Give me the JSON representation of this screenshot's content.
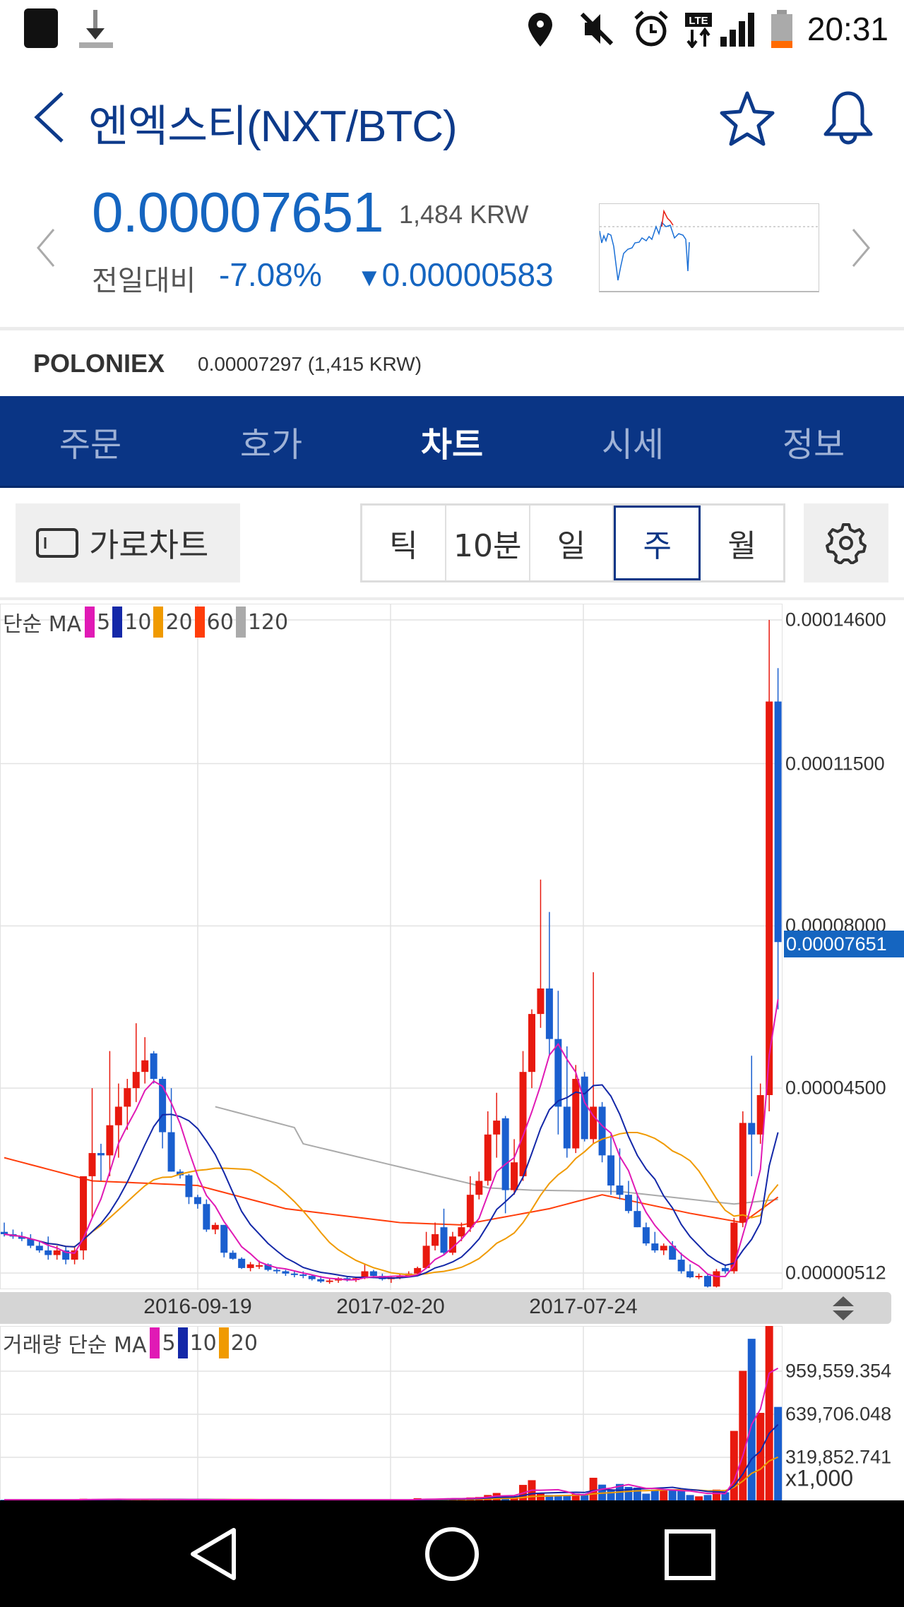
{
  "status_bar": {
    "time": "20:31",
    "icons": [
      "app-icon",
      "download-icon",
      "location-icon",
      "mute-icon",
      "alarm-icon",
      "lte-icon",
      "signal-icon",
      "battery-icon"
    ]
  },
  "header": {
    "title": "엔엑스티(NXT/BTC)",
    "icons": [
      "back-icon",
      "star-icon",
      "bell-icon"
    ]
  },
  "price": {
    "value": "0.00007651",
    "krw": "1,484 KRW",
    "compare_label": "전일대비",
    "change_pct": "-7.08%",
    "change_arrow": "▼",
    "change_value": "0.00000583"
  },
  "exchange": {
    "name": "POLONIEX",
    "price": "0.00007297 (1,415 KRW)"
  },
  "tabs": [
    {
      "label": "주문"
    },
    {
      "label": "호가"
    },
    {
      "label": "차트",
      "active": true
    },
    {
      "label": "시세"
    },
    {
      "label": "정보"
    }
  ],
  "controls": {
    "landscape_label": "가로차트",
    "periods": [
      {
        "label": "틱"
      },
      {
        "label": "10분"
      },
      {
        "label": "일"
      },
      {
        "label": "주",
        "selected": true
      },
      {
        "label": "월"
      }
    ]
  },
  "colors": {
    "up": "#e8190e",
    "down": "#1a5fcf",
    "accent": "#0a3585",
    "price_blue": "#1565c0"
  },
  "chart_data": [
    {
      "type": "candlestick",
      "legend": {
        "label": "단순 MA",
        "items": [
          {
            "name": "5",
            "color": "#e01ab5"
          },
          {
            "name": "10",
            "color": "#1428a8"
          },
          {
            "name": "20",
            "color": "#f09a00"
          },
          {
            "name": "60",
            "color": "#ff3d0a"
          },
          {
            "name": "120",
            "color": "#aaaaaa"
          }
        ]
      },
      "y_ticks": [
        "0.00014600",
        "0.00011500",
        "0.00008000",
        "0.00004500",
        "0.00000512"
      ],
      "ylim": [
        5.12e-06,
        0.000146
      ],
      "current_price_label": "0.00007651",
      "x_ticks": [
        "2016-09-19",
        "2017-02-20",
        "2017-07-24"
      ],
      "x_interval": "weekly",
      "candles_ohlc": [
        [
          1.4e-05,
          1.6e-05,
          1.3e-05,
          1.35e-05
        ],
        [
          1.35e-05,
          1.45e-05,
          1.25e-05,
          1.3e-05
        ],
        [
          1.3e-05,
          1.4e-05,
          1.2e-05,
          1.25e-05
        ],
        [
          1.25e-05,
          1.35e-05,
          1.05e-05,
          1.1e-05
        ],
        [
          1.1e-05,
          1.2e-05,
          9.5e-06,
          1e-05
        ],
        [
          1e-05,
          1.3e-05,
          8e-06,
          9e-06
        ],
        [
          9e-06,
          1.1e-05,
          8e-06,
          1e-05
        ],
        [
          1e-05,
          1.1e-05,
          7e-06,
          8e-06
        ],
        [
          8e-06,
          1.1e-05,
          7e-06,
          1e-05
        ],
        [
          1e-05,
          1.3e-05,
          8e-06,
          2.6e-05
        ],
        [
          2.6e-05,
          4.5e-05,
          1.7e-05,
          3.1e-05
        ],
        [
          3.1e-05,
          3.3e-05,
          2.5e-05,
          3.05e-05
        ],
        [
          3.05e-05,
          5.3e-05,
          2.6e-05,
          3.7e-05
        ],
        [
          3.7e-05,
          4.6e-05,
          3e-05,
          4.1e-05
        ],
        [
          4.1e-05,
          4.7e-05,
          3.6e-05,
          4.5e-05
        ],
        [
          4.5e-05,
          5.9e-05,
          4.2e-05,
          4.85e-05
        ],
        [
          4.85e-05,
          5.6e-05,
          4.6e-05,
          5.1e-05
        ],
        [
          5.25e-05,
          5.3e-05,
          4.6e-05,
          4.7e-05
        ],
        [
          4.7e-05,
          4.75e-05,
          3.2e-05,
          3.55e-05
        ],
        [
          3.55e-05,
          4.5e-05,
          2.7e-05,
          2.7e-05
        ],
        [
          2.7e-05,
          2.75e-05,
          2.55e-05,
          2.62e-05
        ],
        [
          2.62e-05,
          2.65e-05,
          2e-05,
          2.15e-05
        ],
        [
          2.15e-05,
          2.2e-05,
          1.9e-05,
          2e-05
        ],
        [
          2e-05,
          2.1e-05,
          1.4e-05,
          1.45e-05
        ],
        [
          1.45e-05,
          1.6e-05,
          1.35e-05,
          1.55e-05
        ],
        [
          1.55e-05,
          1.55e-05,
          8.5e-06,
          9.5e-06
        ],
        [
          9.5e-06,
          1e-05,
          8e-06,
          8.2e-06
        ],
        [
          8.2e-06,
          8.5e-06,
          6e-06,
          6.2e-06
        ],
        [
          6.2e-06,
          7.5e-06,
          5.5e-06,
          7e-06
        ],
        [
          6.6e-06,
          7.8e-06,
          6e-06,
          6.8e-06
        ],
        [
          7e-06,
          7.2e-06,
          5.5e-06,
          5.8e-06
        ],
        [
          5.8e-06,
          6.2e-06,
          5e-06,
          5.5e-06
        ],
        [
          5.5e-06,
          5.8e-06,
          4.5e-06,
          5e-06
        ],
        [
          5e-06,
          5.5e-06,
          4.2e-06,
          4.8e-06
        ],
        [
          4.8e-06,
          5.5e-06,
          4e-06,
          4.5e-06
        ],
        [
          4.5e-06,
          4.8e-06,
          3.5e-06,
          3.8e-06
        ],
        [
          3.8e-06,
          4.5e-06,
          3e-06,
          3.3e-06
        ],
        [
          3.3e-06,
          4e-06,
          2.8e-06,
          3.5e-06
        ],
        [
          3.5e-06,
          4.2e-06,
          3e-06,
          4e-06
        ],
        [
          4e-06,
          4.5e-06,
          3.3e-06,
          3.6e-06
        ],
        [
          3.6e-06,
          4.2e-06,
          3.2e-06,
          4e-06
        ],
        [
          4e-06,
          7e-06,
          3.8e-06,
          5.5e-06
        ],
        [
          5.5e-06,
          5.8e-06,
          4e-06,
          4.5e-06
        ],
        [
          4.5e-06,
          5e-06,
          3.5e-06,
          3.8e-06
        ],
        [
          3.8e-06,
          4.5e-06,
          3e-06,
          4.2e-06
        ],
        [
          4.2e-06,
          5e-06,
          3.8e-06,
          4.5e-06
        ],
        [
          4.5e-06,
          5.5e-06,
          4.2e-06,
          5e-06
        ],
        [
          5e-06,
          6.5e-06,
          4.5e-06,
          6.2e-06
        ],
        [
          6.2e-06,
          1.4e-05,
          6e-06,
          1.1e-05
        ],
        [
          1.1e-05,
          1.6e-05,
          1e-05,
          1.35e-05
        ],
        [
          1.5e-05,
          1.9e-05,
          9e-06,
          9.5e-06
        ],
        [
          9.5e-06,
          1.4e-05,
          9e-06,
          1.3e-05
        ],
        [
          1.3e-05,
          1.6e-05,
          1.2e-05,
          1.5e-05
        ],
        [
          1.5e-05,
          2.6e-05,
          1.4e-05,
          2.2e-05
        ],
        [
          2.2e-05,
          2.7e-05,
          2.1e-05,
          2.5e-05
        ],
        [
          2.5e-05,
          4e-05,
          2.4e-05,
          3.5e-05
        ],
        [
          3.5e-05,
          4.4e-05,
          3e-05,
          3.8e-05
        ],
        [
          3.85e-05,
          3.9e-05,
          1.8e-05,
          2.3e-05
        ],
        [
          2.3e-05,
          3.4e-05,
          2.2e-05,
          2.9e-05
        ],
        [
          2.6e-05,
          5.3e-05,
          2.5e-05,
          4.85e-05
        ],
        [
          4.85e-05,
          6.2e-05,
          4.5e-05,
          6.1e-05
        ],
        [
          6.1e-05,
          9e-05,
          5.8e-05,
          6.65e-05
        ],
        [
          6.65e-05,
          8.3e-05,
          5.2e-05,
          5.56e-05
        ],
        [
          5.56e-05,
          6.6e-05,
          3.5e-05,
          4.1e-05
        ],
        [
          4.1e-05,
          5.4e-05,
          3e-05,
          3.2e-05
        ],
        [
          3.2e-05,
          5e-05,
          3.1e-05,
          4.7e-05
        ],
        [
          4.75e-05,
          4.85e-05,
          3.35e-05,
          3.4e-05
        ],
        [
          3.4e-05,
          7e-05,
          3.3e-05,
          4.1e-05
        ],
        [
          4.1e-05,
          4.2e-05,
          2.9e-05,
          3.05e-05
        ],
        [
          3.05e-05,
          3.5e-05,
          2.2e-05,
          2.4e-05
        ],
        [
          2.4e-05,
          3.2e-05,
          2.1e-05,
          2.2e-05
        ],
        [
          2.2e-05,
          2.5e-05,
          1.8e-05,
          1.85e-05
        ],
        [
          1.85e-05,
          2.2e-05,
          1.5e-05,
          1.5e-05
        ],
        [
          1.5e-05,
          1.6e-05,
          1.1e-05,
          1.15e-05
        ],
        [
          1.15e-05,
          1.4e-05,
          9.5e-06,
          1e-05
        ],
        [
          1e-05,
          1.15e-05,
          9e-06,
          1.1e-05
        ],
        [
          1.1e-05,
          1.2e-05,
          8e-06,
          8e-06
        ],
        [
          8e-06,
          9.5e-06,
          5e-06,
          5.5e-06
        ],
        [
          5.5e-06,
          7e-06,
          4e-06,
          4.2e-06
        ],
        [
          4.2e-06,
          5e-06,
          3.8e-06,
          4.5e-06
        ],
        [
          4.5e-06,
          5e-06,
          2e-06,
          2.2e-06
        ],
        [
          2.2e-06,
          6e-06,
          2e-06,
          5.5e-06
        ],
        [
          6.2e-06,
          7e-06,
          5e-06,
          5.5e-06
        ],
        [
          5.5e-06,
          1.7e-05,
          5e-06,
          1.6e-05
        ],
        [
          1.6e-05,
          4e-05,
          1.5e-05,
          3.75e-05
        ],
        [
          3.75e-05,
          5.2e-05,
          2.6e-05,
          3.5e-05
        ],
        [
          3.5e-05,
          4.6e-05,
          3.3e-05,
          4.35e-05
        ],
        [
          4.35e-05,
          0.000146,
          4e-05,
          0.0001284
        ],
        [
          0.0001284,
          0.0001356,
          6.2e-05,
          7.651e-05
        ]
      ],
      "ma60_keypoints": [
        [
          0,
          3e-05
        ],
        [
          10,
          2.5e-05
        ],
        [
          22,
          2.4e-05
        ],
        [
          32,
          1.9e-05
        ],
        [
          45,
          1.6e-05
        ],
        [
          52,
          1.55e-05
        ],
        [
          62,
          1.9e-05
        ],
        [
          68,
          2.2e-05
        ],
        [
          78,
          1.8e-05
        ],
        [
          84,
          1.6e-05
        ],
        [
          88,
          2.15e-05
        ]
      ],
      "ma120_keypoints": [
        [
          24,
          4.1e-05
        ],
        [
          25,
          4.05e-05
        ],
        [
          33,
          3.65e-05
        ],
        [
          34,
          3.3e-05
        ],
        [
          45,
          2.8e-05
        ],
        [
          55,
          2.35e-05
        ],
        [
          60,
          2.3e-05
        ],
        [
          70,
          2.27e-05
        ],
        [
          83,
          2e-05
        ],
        [
          88,
          2.1e-05
        ]
      ]
    },
    {
      "type": "bar",
      "legend": {
        "label": "거래량 단순 MA",
        "items": [
          {
            "name": "5",
            "color": "#e01ab5"
          },
          {
            "name": "10",
            "color": "#1428a8"
          },
          {
            "name": "20",
            "color": "#f09a00"
          }
        ]
      },
      "y_ticks": [
        "959,559.354",
        "639,706.048",
        "319,852.741"
      ],
      "y_tick_values": [
        959559.354,
        639706.048,
        319852.741
      ],
      "unit_label": "x1,000",
      "volumes": [
        4000,
        4000,
        4000,
        4000,
        4000,
        4000,
        4000,
        4000,
        4000,
        12000,
        8000,
        7000,
        8000,
        7000,
        8000,
        8000,
        7000,
        7000,
        6000,
        6000,
        6000,
        5000,
        5000,
        5000,
        5000,
        5000,
        5000,
        5000,
        5000,
        5000,
        4000,
        4000,
        4000,
        4000,
        4000,
        4000,
        4000,
        4000,
        4000,
        4000,
        4000,
        5000,
        4000,
        4000,
        4000,
        4000,
        5000,
        16000,
        12000,
        10000,
        12000,
        15000,
        18000,
        22000,
        25000,
        40000,
        55000,
        30000,
        30000,
        115000,
        150000,
        52000,
        40000,
        40000,
        40000,
        50000,
        40000,
        168000,
        117000,
        80000,
        122000,
        100000,
        95000,
        50000,
        80000,
        80000,
        80000,
        70000,
        40000,
        30000,
        40000,
        80000,
        60000,
        516000,
        962000,
        1200000,
        650000,
        1400000,
        694000
      ]
    }
  ]
}
